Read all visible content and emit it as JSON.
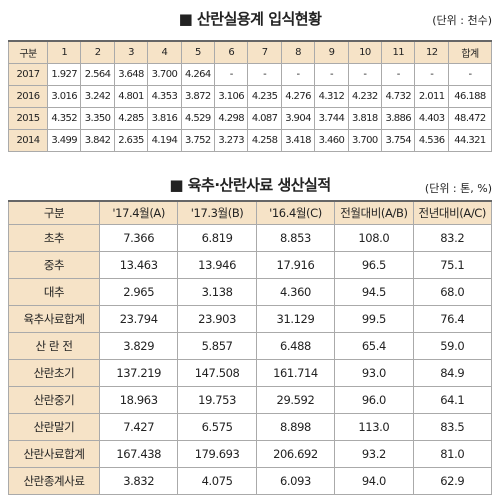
{
  "table1": {
    "title": "■ 산란실용계 입식현황",
    "unit": "(단위 : 천수)",
    "header": [
      "구분",
      "1",
      "2",
      "3",
      "4",
      "5",
      "6",
      "7",
      "8",
      "9",
      "10",
      "11",
      "12",
      "합계"
    ],
    "rows": [
      [
        "2017",
        "1.927",
        "2.564",
        "3.648",
        "3.700",
        "4.264",
        "-",
        "-",
        "-",
        "-",
        "-",
        "-",
        "-",
        "-"
      ],
      [
        "2016",
        "3.016",
        "3.242",
        "4.801",
        "4.353",
        "3.872",
        "3.106",
        "4.235",
        "4.276",
        "4.312",
        "4.232",
        "4.732",
        "2.011",
        "46.188"
      ],
      [
        "2015",
        "4.352",
        "3.350",
        "4.285",
        "3.816",
        "4.529",
        "4.298",
        "4.087",
        "3.904",
        "3.744",
        "3.818",
        "3.886",
        "4.403",
        "48.472"
      ],
      [
        "2014",
        "3.499",
        "3.842",
        "2.635",
        "4.194",
        "3.752",
        "3.273",
        "4.258",
        "3.418",
        "3.460",
        "3.700",
        "3.754",
        "4.536",
        "44.321"
      ]
    ]
  },
  "table2": {
    "title": "■ 육추·산란사료 생산실적",
    "unit": "(단위 : 톤, %)",
    "header": [
      "구분",
      "'17.4월(A)",
      "'17.3월(B)",
      "'16.4월(C)",
      "전월대비(A/B)",
      "전년대비(A/C)"
    ],
    "rows": [
      [
        "초추",
        "7.366",
        "6.819",
        "8.853",
        "108.0",
        "83.2"
      ],
      [
        "중추",
        "13.463",
        "13.946",
        "17.916",
        "96.5",
        "75.1"
      ],
      [
        "대추",
        "2.965",
        "3.138",
        "4.360",
        "94.5",
        "68.0"
      ],
      [
        "육추사료합계",
        "23.794",
        "23.903",
        "31.129",
        "99.5",
        "76.4"
      ],
      [
        "산 란 전",
        "3.829",
        "5.857",
        "6.488",
        "65.4",
        "59.0"
      ],
      [
        "산란초기",
        "137.219",
        "147.508",
        "161.714",
        "93.0",
        "84.9"
      ],
      [
        "산란중기",
        "18.963",
        "19.753",
        "29.592",
        "96.0",
        "64.1"
      ],
      [
        "산란말기",
        "7.427",
        "6.575",
        "8.898",
        "113.0",
        "83.5"
      ],
      [
        "산란사료합계",
        "167.438",
        "179.693",
        "206.692",
        "93.2",
        "81.0"
      ],
      [
        "산란종계사료",
        "3.832",
        "4.075",
        "6.093",
        "94.0",
        "62.9"
      ]
    ]
  }
}
